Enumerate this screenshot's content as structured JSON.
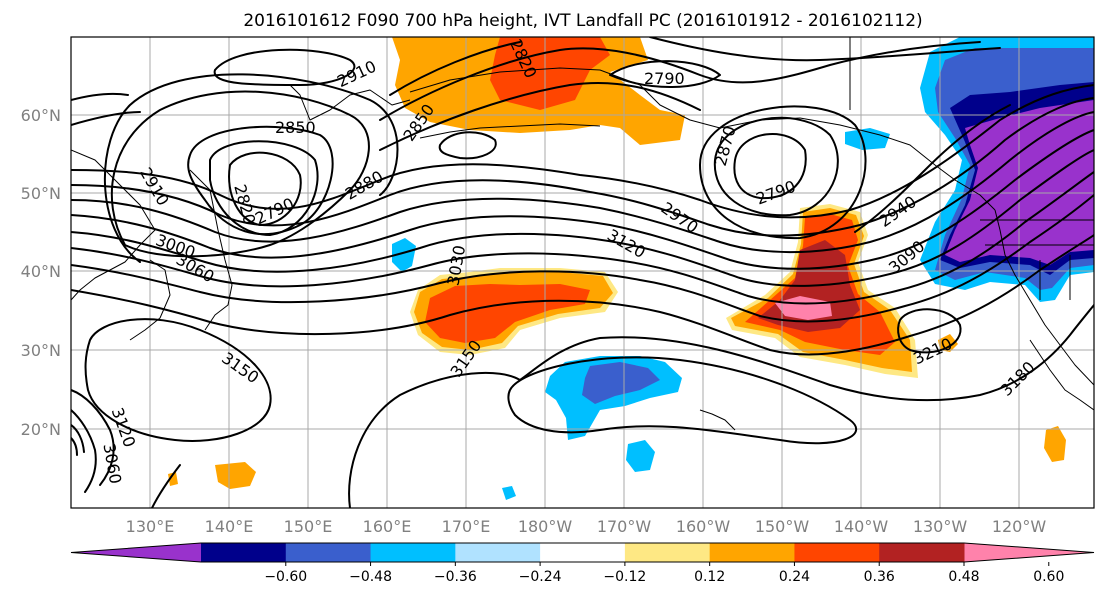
{
  "title": "2016101612 F090 700 hPa height, IVT Landfall PC (2016101912 - 2016102112)",
  "lat_labels": [
    "60°N",
    "50°N",
    "40°N",
    "30°N",
    "20°N"
  ],
  "lon_labels": [
    "130°E",
    "140°E",
    "150°E",
    "160°E",
    "170°E",
    "180°W",
    "170°W",
    "160°W",
    "150°W",
    "140°W",
    "130°W",
    "120°W"
  ],
  "colorbar": {
    "tick_labels": [
      "−0.60",
      "−0.48",
      "−0.36",
      "−0.24",
      "−0.12",
      "0.12",
      "0.24",
      "0.36",
      "0.48",
      "0.60"
    ],
    "colors": [
      "#9932cc",
      "#00008b",
      "#3a5fcd",
      "#00bfff",
      "#b0e2ff",
      "#ffffff",
      "#fee884",
      "#ffa500",
      "#ff4500",
      "#b22222",
      "#ff82ab"
    ],
    "extend": "both"
  },
  "contour_labels": [
    "2910",
    "2850",
    "2910",
    "2820",
    "2790",
    "3000",
    "3060",
    "2880",
    "2850",
    "3030",
    "3150",
    "2970",
    "3120",
    "3150",
    "2820",
    "2790",
    "2870",
    "2790",
    "2940",
    "3090",
    "3210",
    "3180",
    "3120",
    "3060"
  ]
}
